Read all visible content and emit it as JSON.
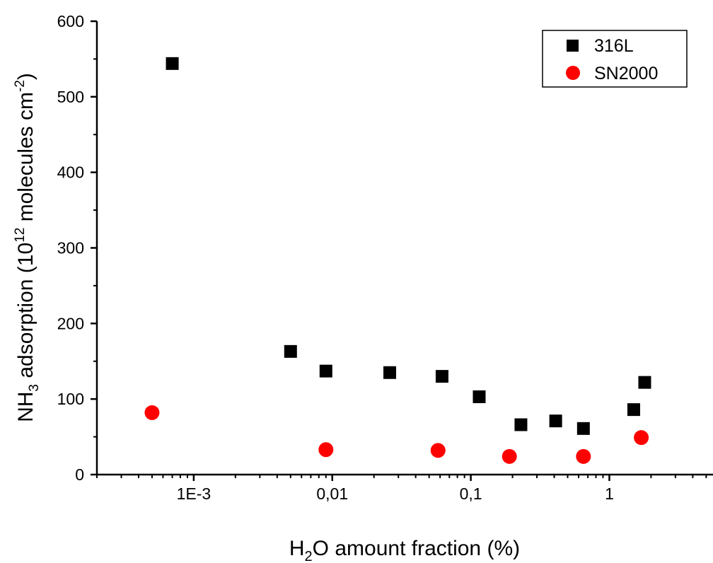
{
  "chart_data": {
    "type": "scatter",
    "x_scale": "log",
    "y_scale": "linear",
    "xlim": [
      0.0002,
      5.6
    ],
    "ylim": [
      0,
      600
    ],
    "xlabel": {
      "main_a": "H",
      "sub": "2",
      "main_b": "O amount fraction (%)"
    },
    "ylabel": {
      "main_a": "NH",
      "sub": "3",
      "main_b": " adsorption (10",
      "sup": "12",
      "main_c": " molecules cm",
      "sup2": "-2",
      "main_d": ")"
    },
    "x_ticks": [
      {
        "value": 0.001,
        "label": "1E-3"
      },
      {
        "value": 0.01,
        "label": "0,01"
      },
      {
        "value": 0.1,
        "label": "0,1"
      },
      {
        "value": 1,
        "label": "1"
      }
    ],
    "y_ticks": [
      {
        "value": 0,
        "label": "0"
      },
      {
        "value": 100,
        "label": "100"
      },
      {
        "value": 200,
        "label": "200"
      },
      {
        "value": 300,
        "label": "300"
      },
      {
        "value": 400,
        "label": "400"
      },
      {
        "value": 500,
        "label": "500"
      },
      {
        "value": 600,
        "label": "600"
      }
    ],
    "legend_position": "top-right",
    "series": [
      {
        "name": "316L",
        "marker": "square",
        "color": "#000000",
        "points": [
          {
            "x": 0.0007,
            "y": 544
          },
          {
            "x": 0.005,
            "y": 163
          },
          {
            "x": 0.009,
            "y": 137
          },
          {
            "x": 0.026,
            "y": 135
          },
          {
            "x": 0.062,
            "y": 130
          },
          {
            "x": 0.115,
            "y": 103
          },
          {
            "x": 0.23,
            "y": 66
          },
          {
            "x": 0.41,
            "y": 71
          },
          {
            "x": 0.65,
            "y": 61
          },
          {
            "x": 1.5,
            "y": 86
          },
          {
            "x": 1.8,
            "y": 122
          }
        ]
      },
      {
        "name": "SN2000",
        "marker": "circle",
        "color": "#ff0000",
        "points": [
          {
            "x": 0.0005,
            "y": 82
          },
          {
            "x": 0.009,
            "y": 33
          },
          {
            "x": 0.058,
            "y": 32
          },
          {
            "x": 0.19,
            "y": 24
          },
          {
            "x": 0.65,
            "y": 24
          },
          {
            "x": 1.7,
            "y": 49
          }
        ]
      }
    ]
  }
}
